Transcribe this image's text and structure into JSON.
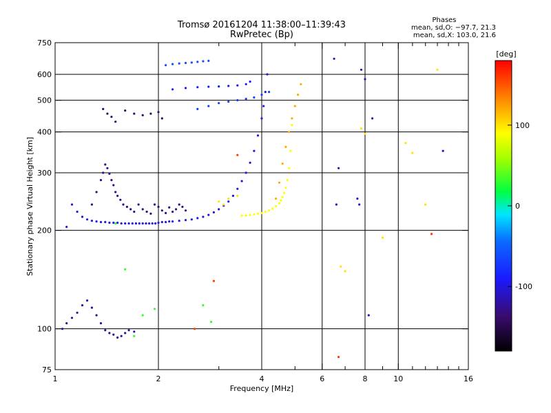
{
  "chart_data": {
    "type": "scatter",
    "title": "Tromsø 20161204 11:38:00–11:39:43",
    "subtitle": "RwPretec (Bp)",
    "info_title": "Phases",
    "info_lines": [
      "mean, sd,O: −97.7, 21.3",
      "mean, sd,X: 103.0, 21.6"
    ],
    "xlabel": "Frequency [MHz]",
    "ylabel": "Stationary phase Virtual Height [km]",
    "x_scale": "log",
    "y_scale": "log",
    "xlim": [
      1,
      16
    ],
    "ylim": [
      75,
      750
    ],
    "x_ticks": [
      1,
      2,
      4,
      6,
      8,
      10,
      16
    ],
    "x_tick_labels": [
      "1",
      "2",
      "4",
      "6",
      "8",
      "10",
      "16"
    ],
    "x_minor_ticks": [
      3,
      5,
      7,
      9,
      11,
      12,
      13,
      14,
      15
    ],
    "x_grid": [
      2,
      4,
      6,
      8,
      10
    ],
    "y_ticks": [
      75,
      100,
      200,
      300,
      400,
      500,
      600,
      750
    ],
    "y_tick_labels": [
      "75",
      "100",
      "200",
      "300",
      "400",
      "500",
      "600",
      "750"
    ],
    "y_grid": [
      100,
      200,
      300,
      400,
      500,
      600
    ],
    "colorbar": {
      "label": "[deg]",
      "range": [
        -180,
        180
      ],
      "ticks": [
        100,
        0,
        -100
      ],
      "tick_labels": [
        "100",
        "0",
        "-100"
      ]
    },
    "grid": true,
    "series": [
      {
        "color_phase": -100,
        "x": [
          1.08,
          1.12,
          1.16,
          1.2,
          1.24,
          1.28,
          1.32,
          1.36,
          1.4,
          1.44,
          1.48,
          1.52,
          1.56,
          1.6,
          1.64,
          1.68,
          1.72,
          1.76,
          1.8,
          1.84,
          1.88,
          1.92,
          1.96,
          2.0,
          2.05,
          2.1,
          2.15,
          2.2,
          2.3,
          2.4,
          2.5,
          2.6,
          2.7,
          2.8,
          2.9,
          3.0,
          3.1,
          3.2,
          3.3,
          3.4,
          3.5,
          3.6,
          3.7,
          3.8,
          3.9,
          4.0,
          4.05,
          4.1,
          4.15
        ],
        "y": [
          205,
          240,
          228,
          220,
          216,
          214,
          213,
          212,
          212,
          211,
          211,
          211,
          210,
          210,
          210,
          210,
          210,
          210,
          210,
          210,
          210,
          210,
          210,
          211,
          212,
          212,
          213,
          213,
          214,
          215,
          216,
          218,
          220,
          223,
          227,
          232,
          238,
          245,
          255,
          268,
          283,
          300,
          322,
          350,
          390,
          440,
          480,
          530,
          600
        ]
      },
      {
        "color_phase": 90,
        "x": [
          3.5,
          3.6,
          3.7,
          3.8,
          3.9,
          4.0,
          4.1,
          4.2,
          4.3,
          4.4,
          4.5,
          4.55,
          4.6,
          4.65,
          4.7,
          4.75,
          4.8,
          4.85,
          4.9
        ],
        "y": [
          222,
          222,
          223,
          224,
          225,
          226,
          228,
          230,
          233,
          237,
          242,
          247,
          253,
          260,
          270,
          285,
          310,
          350,
          420
        ]
      },
      {
        "color_phase": -130,
        "x": [
          1.28,
          1.32,
          1.36,
          1.38,
          1.4,
          1.42,
          1.44,
          1.46,
          1.48,
          1.5,
          1.52,
          1.55,
          1.58,
          1.62,
          1.66,
          1.7,
          1.75,
          1.8,
          1.85,
          1.9,
          1.95,
          2.0,
          2.05,
          2.1,
          2.15,
          2.2,
          2.25,
          2.3,
          2.35,
          2.4
        ],
        "y": [
          240,
          262,
          285,
          300,
          318,
          310,
          298,
          285,
          275,
          262,
          255,
          248,
          240,
          236,
          232,
          228,
          240,
          232,
          228,
          225,
          240,
          236,
          230,
          226,
          235,
          228,
          232,
          240,
          236,
          230
        ]
      },
      {
        "color_phase": -125,
        "x": [
          1.05,
          1.08,
          1.12,
          1.16,
          1.2,
          1.24,
          1.28,
          1.32,
          1.36,
          1.4,
          1.44,
          1.48,
          1.52,
          1.56,
          1.6,
          1.64,
          1.7
        ],
        "y": [
          100,
          104,
          108,
          112,
          118,
          122,
          116,
          110,
          104,
          99,
          97,
          96,
          94,
          95,
          97,
          99,
          98
        ]
      },
      {
        "color_phase": -140,
        "x": [
          1.38,
          1.42,
          1.46,
          1.5,
          1.6,
          1.7,
          1.8,
          1.9,
          2.0,
          2.05
        ],
        "y": [
          470,
          455,
          445,
          430,
          465,
          455,
          450,
          455,
          460,
          440
        ]
      },
      {
        "color_phase": -90,
        "x": [
          2.2,
          2.4,
          2.6,
          2.8,
          3.0,
          3.2,
          3.4,
          3.6,
          3.7
        ],
        "y": [
          540,
          545,
          548,
          550,
          551,
          553,
          555,
          560,
          570
        ]
      },
      {
        "color_phase": -60,
        "x": [
          2.1,
          2.2,
          2.3,
          2.4,
          2.5,
          2.6,
          2.7,
          2.8
        ],
        "y": [
          640,
          645,
          648,
          650,
          652,
          655,
          658,
          660
        ]
      },
      {
        "color_phase": -70,
        "x": [
          2.6,
          2.8,
          3.0,
          3.2,
          3.4,
          3.6,
          3.8,
          4.0,
          4.2
        ],
        "y": [
          470,
          480,
          490,
          495,
          500,
          505,
          510,
          520,
          530
        ]
      },
      {
        "color_phase": 120,
        "x": [
          4.4,
          4.5,
          4.6,
          4.7,
          4.8,
          4.9,
          5.0,
          5.1,
          5.2
        ],
        "y": [
          250,
          280,
          320,
          360,
          400,
          440,
          480,
          520,
          560
        ]
      },
      {
        "color_phase": 100,
        "x": [
          3.0,
          3.1,
          3.2,
          3.4,
          6.8,
          7.0,
          7.8,
          8.0,
          9.0,
          10.5,
          11.0,
          12.0,
          13.0
        ],
        "y": [
          245,
          240,
          250,
          255,
          155,
          150,
          410,
          395,
          190,
          370,
          345,
          240,
          620
        ]
      },
      {
        "color_phase": -110,
        "x": [
          6.5,
          6.6,
          6.7,
          7.6,
          7.7,
          7.8,
          8.0,
          8.2,
          8.4,
          13.5
        ],
        "y": [
          670,
          240,
          310,
          250,
          240,
          620,
          580,
          110,
          440,
          350
        ]
      },
      {
        "color_phase": 30,
        "x": [
          1.5,
          1.6,
          1.7,
          1.8,
          1.95,
          2.7,
          2.85
        ],
        "y": [
          210,
          152,
          95,
          110,
          115,
          118,
          105
        ]
      },
      {
        "color_phase": 160,
        "x": [
          2.55,
          2.9,
          3.4,
          12.5,
          6.7
        ],
        "y": [
          100,
          140,
          340,
          195,
          82
        ]
      }
    ]
  }
}
